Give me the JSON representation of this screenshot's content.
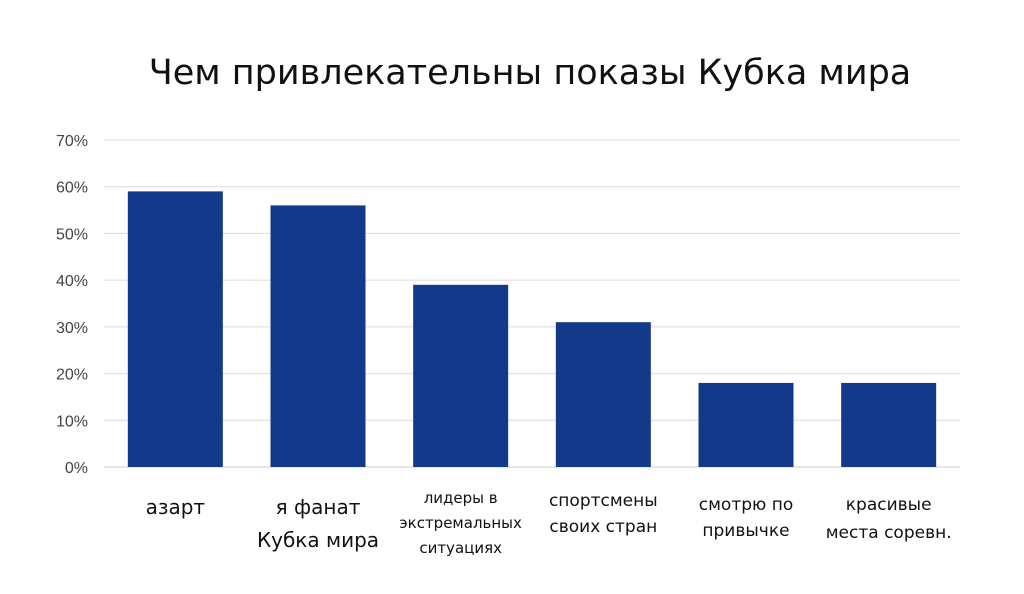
{
  "chart_data": {
    "type": "bar",
    "title": "Чем привлекательны показы Кубка мира",
    "xlabel": "",
    "ylabel": "",
    "ylim": [
      0,
      70
    ],
    "y_ticks": [
      "0%",
      "10%",
      "20%",
      "30%",
      "40%",
      "50%",
      "60%",
      "70%"
    ],
    "y_tick_values": [
      0,
      10,
      20,
      30,
      40,
      50,
      60,
      70
    ],
    "categories": [
      [
        "азарт"
      ],
      [
        "я фанат",
        "Кубка мира"
      ],
      [
        "лидеры в",
        "экстремальных",
        "ситуациях"
      ],
      [
        "спортсмены",
        "своих стран"
      ],
      [
        "смотрю по",
        "привычке"
      ],
      [
        "красивые",
        "места соревн."
      ]
    ],
    "values": [
      59,
      56,
      39,
      31,
      18,
      18
    ],
    "bar_color": "#133a8a",
    "grid": true,
    "legend": "none"
  }
}
